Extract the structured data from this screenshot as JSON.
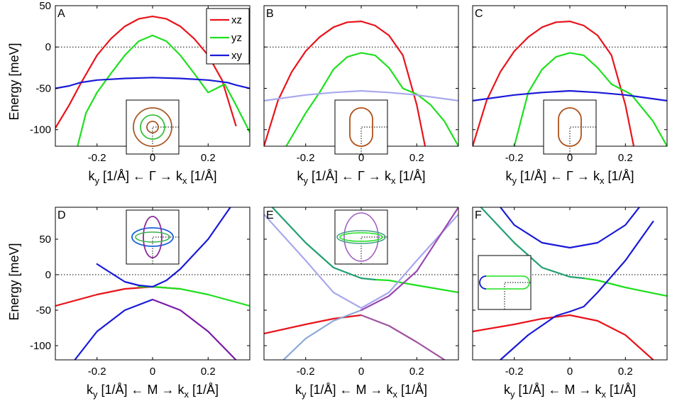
{
  "chart_data": {
    "type": "line",
    "ylabel": "Energy [meV]",
    "xlabel_gamma": {
      "a": "k",
      "b": "y",
      "c": " [1/Å] ← Γ → k",
      "d": "x",
      "e": " [1/Å]"
    },
    "xlabel_m": {
      "a": "k",
      "b": "y",
      "c": " [1/Å] ← M → k",
      "d": "x",
      "e": " [1/Å]"
    },
    "legend": [
      {
        "name": "xz",
        "color": "#e8141b"
      },
      {
        "name": "yz",
        "color": "#1ee01e"
      },
      {
        "name": "xy",
        "color": "#1a1ad8"
      }
    ],
    "colors": {
      "xz": "#e8141b",
      "yz": "#1ee01e",
      "xy": "#1a1ad8"
    },
    "xlim": [
      -0.35,
      0.35
    ],
    "xticks": [
      -0.2,
      0,
      0.2
    ],
    "xtick_labels": [
      "-0.2",
      "0",
      "0.2"
    ],
    "top_row": {
      "ylim": [
        -120,
        50
      ],
      "yticks": [
        50,
        0,
        -50,
        -100
      ],
      "ytick_labels": [
        "50",
        "0",
        "-50",
        "-100"
      ]
    },
    "bottom_row": {
      "ylim": [
        -120,
        95
      ],
      "yticks": [
        50,
        0,
        -50,
        -100
      ],
      "ytick_labels": [
        "50",
        "0",
        "-50",
        "-100"
      ]
    },
    "zero_line": 0,
    "panels": [
      {
        "label": "A",
        "series": [
          {
            "name": "xz-outer",
            "color": "#e8141b",
            "x": [
              -0.35,
              -0.3,
              -0.26,
              -0.2,
              -0.15,
              -0.1,
              -0.05,
              0,
              0.05,
              0.1,
              0.15,
              0.2,
              0.25,
              0.3
            ],
            "y": [
              -98,
              -70,
              -45,
              -10,
              10,
              25,
              34,
              37,
              34,
              25,
              10,
              -10,
              -40,
              -95
            ]
          },
          {
            "name": "yz-inner",
            "color": "#1ee01e",
            "x": [
              -0.27,
              -0.24,
              -0.2,
              -0.15,
              -0.1,
              -0.05,
              0,
              0.05,
              0.1,
              0.15,
              0.2,
              0.26,
              0.3,
              0.35
            ],
            "y": [
              -120,
              -80,
              -55,
              -32,
              -10,
              7,
              14,
              7,
              -10,
              -32,
              -55,
              -45,
              -70,
              -103
            ]
          },
          {
            "name": "xy",
            "color": "#1a1ad8",
            "x": [
              -0.35,
              -0.3,
              -0.26,
              -0.2,
              -0.15,
              -0.1,
              0,
              0.1,
              0.2,
              0.27,
              0.3,
              0.35
            ],
            "y": [
              -50,
              -47,
              -43,
              -40,
              -39,
              -38,
              -37,
              -38,
              -40,
              -43,
              -46,
              -50
            ]
          }
        ]
      },
      {
        "label": "B",
        "series": [
          {
            "name": "xz",
            "color": "#e8141b",
            "x": [
              -0.35,
              -0.3,
              -0.25,
              -0.2,
              -0.15,
              -0.1,
              -0.05,
              0,
              0.05,
              0.1,
              0.15,
              0.2,
              0.23
            ],
            "y": [
              -120,
              -65,
              -30,
              -5,
              12,
              24,
              30,
              31,
              26,
              14,
              -10,
              -70,
              -120
            ]
          },
          {
            "name": "yz",
            "color": "#1ee01e",
            "x": [
              -0.27,
              -0.2,
              -0.15,
              -0.1,
              -0.05,
              0,
              0.05,
              0.1,
              0.15,
              0.2,
              0.25,
              0.3,
              0.35
            ],
            "y": [
              -120,
              -80,
              -55,
              -27,
              -12,
              -7,
              -10,
              -25,
              -50,
              -57,
              -70,
              -90,
              -120
            ]
          },
          {
            "name": "xy-faint",
            "color": "#a8a8ee",
            "x": [
              -0.35,
              -0.2,
              -0.1,
              0,
              0.1,
              0.2,
              0.35
            ],
            "y": [
              -65,
              -58,
              -55,
              -53,
              -55,
              -58,
              -65
            ]
          }
        ]
      },
      {
        "label": "C",
        "series": [
          {
            "name": "xz",
            "color": "#e8141b",
            "x": [
              -0.35,
              -0.3,
              -0.25,
              -0.2,
              -0.15,
              -0.1,
              -0.05,
              0,
              0.05,
              0.1,
              0.15,
              0.2,
              0.23
            ],
            "y": [
              -120,
              -65,
              -30,
              -5,
              12,
              24,
              30,
              31,
              26,
              14,
              -10,
              -70,
              -120
            ]
          },
          {
            "name": "yz",
            "color": "#1ee01e",
            "x": [
              -0.2,
              -0.15,
              -0.1,
              -0.05,
              0,
              0.05,
              0.1,
              0.15,
              0.22,
              0.3,
              0.35
            ],
            "y": [
              -120,
              -55,
              -27,
              -12,
              -7,
              -10,
              -25,
              -45,
              -57,
              -90,
              -120
            ]
          },
          {
            "name": "xy",
            "color": "#1a1ad8",
            "x": [
              -0.35,
              -0.2,
              -0.1,
              0,
              0.1,
              0.2,
              0.35
            ],
            "y": [
              -65,
              -58,
              -55,
              -53,
              -55,
              -58,
              -65
            ]
          }
        ]
      },
      {
        "label": "D",
        "series": [
          {
            "name": "xz",
            "color": "#e8141b",
            "x": [
              -0.35,
              -0.2,
              -0.1,
              0,
              0.1
            ],
            "y": [
              -44,
              -28,
              -20,
              -17,
              -20
            ]
          },
          {
            "name": "yz",
            "color": "#1ee01e",
            "x": [
              -0.05,
              0,
              0.1,
              0.2,
              0.35
            ],
            "y": [
              -17,
              -17,
              -20,
              -28,
              -44
            ]
          },
          {
            "name": "xy-upper",
            "color": "#1a1ad8",
            "x": [
              -0.2,
              -0.1,
              -0.05,
              0,
              0.05,
              0.1,
              0.2,
              0.28
            ],
            "y": [
              15,
              -10,
              -15,
              -17,
              -8,
              8,
              50,
              95
            ]
          },
          {
            "name": "xy-lower-left",
            "color": "#1a1ad8",
            "x": [
              -0.28,
              -0.2,
              -0.1,
              0
            ],
            "y": [
              -120,
              -80,
              -50,
              -35
            ]
          },
          {
            "name": "xy-lower-right",
            "color": "#7a1aa8",
            "x": [
              0,
              0.1,
              0.2,
              0.3
            ],
            "y": [
              -35,
              -50,
              -80,
              -120
            ]
          }
        ]
      },
      {
        "label": "E",
        "series": [
          {
            "name": "xz",
            "color": "#e8141b",
            "x": [
              -0.35,
              -0.2,
              -0.1,
              0
            ],
            "y": [
              -83,
              -70,
              -62,
              -57
            ]
          },
          {
            "name": "xz-right",
            "color": "#a052a0",
            "x": [
              0,
              0.1,
              0.2,
              0.3
            ],
            "y": [
              -57,
              -72,
              -95,
              -120
            ]
          },
          {
            "name": "yz",
            "color": "#1ee01e",
            "x": [
              0.05,
              0.1,
              0.2,
              0.35
            ],
            "y": [
              -7,
              -8,
              -15,
              -25
            ]
          },
          {
            "name": "yz-left",
            "color": "#22a070",
            "x": [
              -0.32,
              -0.2,
              -0.1,
              0,
              0.05
            ],
            "y": [
              95,
              45,
              10,
              -5,
              -7
            ]
          },
          {
            "name": "xy-faint",
            "color": "#a8a8ee",
            "x": [
              -0.35,
              -0.2,
              -0.1,
              0,
              0.1,
              0.2,
              0.35
            ],
            "y": [
              85,
              20,
              -25,
              -47,
              -25,
              20,
              85
            ]
          },
          {
            "name": "xy-lower-left",
            "color": "#8aa8d8",
            "x": [
              -0.28,
              -0.2,
              -0.1,
              0
            ],
            "y": [
              -120,
              -90,
              -65,
              -50
            ]
          },
          {
            "name": "xy-right",
            "color": "#9a4ab0",
            "x": [
              0,
              0.1,
              0.2,
              0.35
            ],
            "y": [
              -50,
              -30,
              5,
              95
            ]
          }
        ]
      },
      {
        "label": "F",
        "series": [
          {
            "name": "xz",
            "color": "#e8141b",
            "x": [
              -0.35,
              -0.2,
              -0.1,
              0,
              0.1,
              0.2,
              0.3
            ],
            "y": [
              -80,
              -70,
              -62,
              -57,
              -65,
              -85,
              -120
            ]
          },
          {
            "name": "yz",
            "color": "#1ee01e",
            "x": [
              0.05,
              0.1,
              0.2,
              0.35
            ],
            "y": [
              -5,
              -8,
              -18,
              -30
            ]
          },
          {
            "name": "yz-left",
            "color": "#22a070",
            "x": [
              -0.32,
              -0.2,
              -0.1,
              0,
              0.05
            ],
            "y": [
              95,
              45,
              10,
              -3,
              -5
            ]
          },
          {
            "name": "xy-upper",
            "color": "#1a1ad8",
            "x": [
              -0.25,
              -0.2,
              -0.1,
              0,
              0.1,
              0.2,
              0.25
            ],
            "y": [
              95,
              70,
              45,
              38,
              45,
              70,
              95
            ]
          },
          {
            "name": "xy-lower-left",
            "color": "#1a1ad8",
            "x": [
              -0.25,
              -0.15,
              -0.05,
              0
            ],
            "y": [
              -120,
              -85,
              -58,
              -52
            ]
          },
          {
            "name": "xy-lower-right",
            "color": "#1a1ad8",
            "x": [
              0,
              0.05,
              0.1,
              0.2,
              0.3
            ],
            "y": [
              -52,
              -45,
              -25,
              20,
              75
            ]
          }
        ]
      }
    ]
  }
}
